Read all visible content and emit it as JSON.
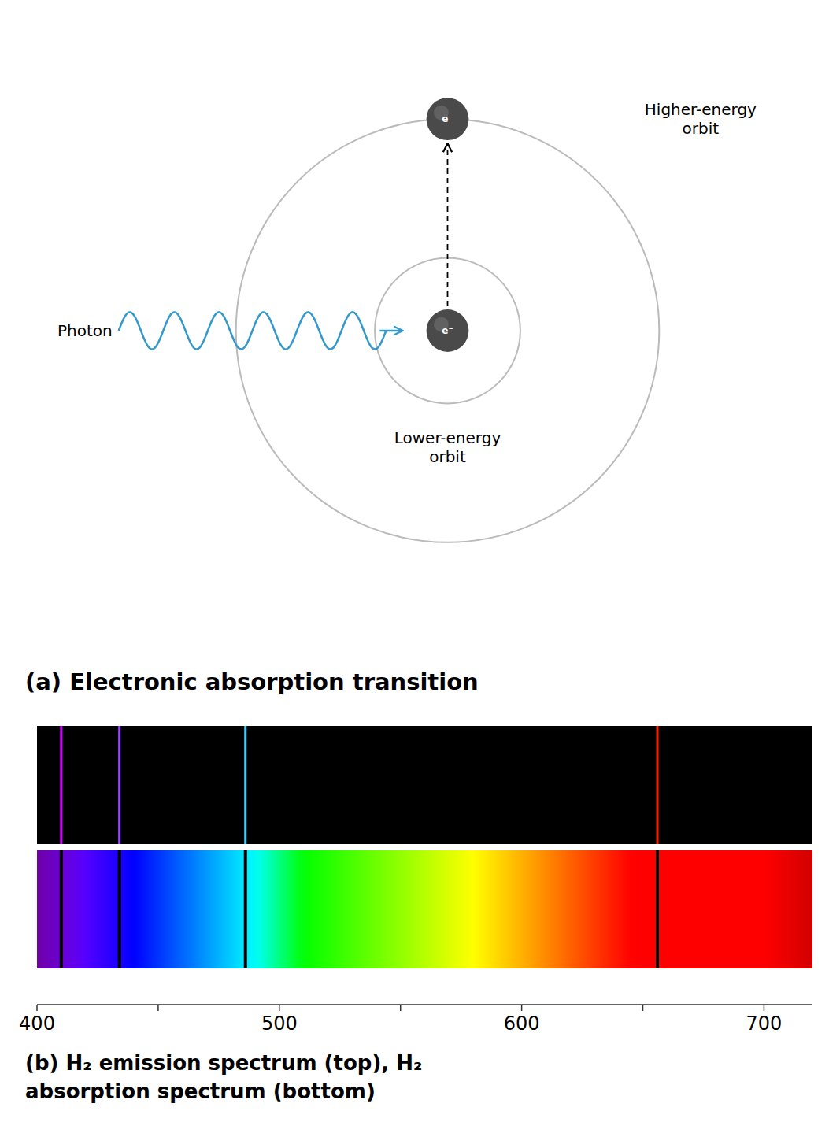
{
  "chart_data": [
    {
      "type": "diagram",
      "title": "(a) Electronic absorption transition",
      "annotations": [
        "Photon",
        "Higher-energy\norbit",
        "Lower-energy\norbit",
        "e⁻",
        "e⁻"
      ]
    },
    {
      "type": "spectrum",
      "title": "(b) H₂ emission spectrum (top), H₂\nabsorption spectrum (bottom)",
      "series": [
        {
          "type": "emission",
          "values": [
            410,
            434,
            486,
            656
          ],
          "colors": [
            "#CC00FF",
            "#9944FF",
            "#44CCFF",
            "#FF2200"
          ]
        },
        {
          "type": "absorption",
          "values": [
            410,
            434,
            486,
            656
          ],
          "color": "#000000"
        }
      ],
      "xlim": [
        400,
        720
      ],
      "xticks": [
        400,
        {
          "value": 450,
          "label": ""
        },
        500,
        {
          "value": 550,
          "label": ""
        },
        600,
        {
          "value": 650,
          "label": ""
        },
        700
      ]
    }
  ]
}
